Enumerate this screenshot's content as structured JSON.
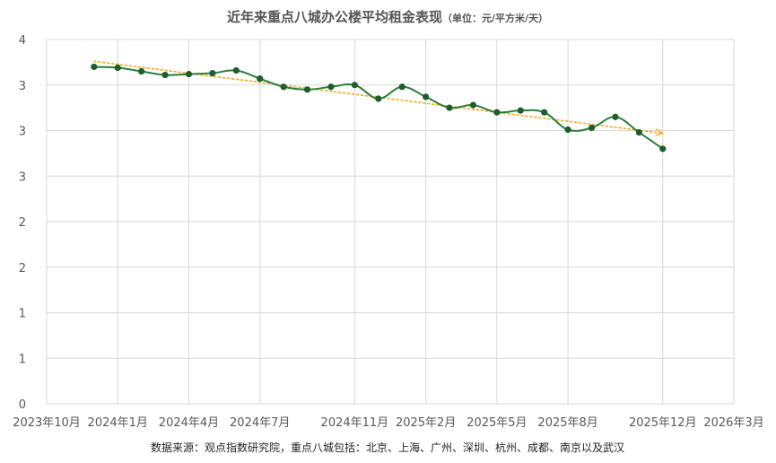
{
  "chart_data": {
    "type": "line",
    "title": "近年来重点八城办公楼平均租金表现",
    "subtitle": "（单位：元/平方米/天）",
    "source_note": "数据来源：观点指数研究院，重点八城包括：北京、上海、广州、深圳、杭州、成都、南京以及武汉",
    "xlabel": "",
    "ylabel": "",
    "x_tick_labels": [
      "2023年10月",
      "2024年1月",
      "2024年4月",
      "2024年7月",
      "2024年11月",
      "2025年2月",
      "2025年5月",
      "2025年8月",
      "2025年12月",
      "2026年3月"
    ],
    "x_tick_dates": [
      "2023-10",
      "2024-01",
      "2024-04",
      "2024-07",
      "2024-11",
      "2025-02",
      "2025-05",
      "2025-08",
      "2025-12",
      "2026-03"
    ],
    "y_tick_labels": [
      "0",
      "1",
      "1",
      "2",
      "2",
      "3",
      "3",
      "3",
      "4"
    ],
    "y_tick_values": [
      0,
      0.5,
      1.0,
      1.5,
      2.0,
      2.5,
      3.0,
      3.5,
      4.0
    ],
    "ylim": [
      0,
      4.0
    ],
    "grid": true,
    "legend": "none",
    "colors": {
      "series": "#2e7d3a",
      "marker": "#1e5e2b",
      "trendline": "#f2b33d",
      "grid": "#d9d9d9"
    },
    "series": [
      {
        "x": [
          "2023-12",
          "2024-01",
          "2024-02",
          "2024-03",
          "2024-04",
          "2024-05",
          "2024-06",
          "2024-07",
          "2024-08",
          "2024-09",
          "2024-10",
          "2024-11",
          "2024-12",
          "2025-01",
          "2025-02",
          "2025-03",
          "2025-04",
          "2025-05",
          "2025-06",
          "2025-07",
          "2025-08",
          "2025-09",
          "2025-10",
          "2025-11",
          "2025-12"
        ],
        "values": [
          3.7,
          3.69,
          3.65,
          3.61,
          3.62,
          3.63,
          3.66,
          3.57,
          3.48,
          3.45,
          3.48,
          3.5,
          3.35,
          3.48,
          3.37,
          3.25,
          3.28,
          3.2,
          3.22,
          3.2,
          3.01,
          3.03,
          3.15,
          2.98,
          2.8
        ]
      }
    ],
    "trendline": {
      "type": "linear",
      "x": [
        "2023-12",
        "2025-12"
      ],
      "values": [
        3.76,
        2.97
      ]
    }
  }
}
